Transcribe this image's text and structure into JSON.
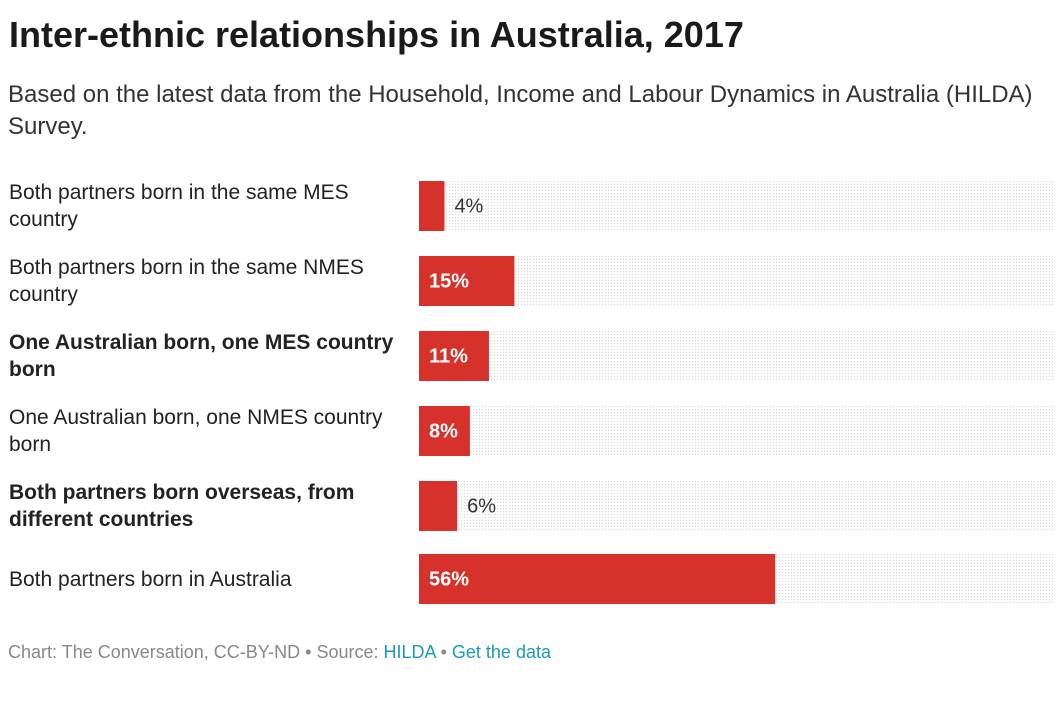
{
  "chart_data": {
    "type": "bar",
    "title": "Inter-ethnic relationships in Australia, 2017",
    "subtitle": "Based on the latest data from the Household, Income and Labour Dynamics in Australia (HILDA) Survey.",
    "categories": [
      "Both partners born in the same MES country",
      "Both partners born in the same NMES country",
      "One Australian born, one MES country born",
      "One Australian born, one NMES country born",
      "Both partners born overseas, from different countries",
      "Both partners born in Australia"
    ],
    "bold": [
      2,
      4
    ],
    "values": [
      4,
      15,
      11,
      8,
      6,
      56
    ],
    "value_labels": [
      "4%",
      "15%",
      "11%",
      "8%",
      "6%",
      "56%"
    ],
    "color": "#d6312b",
    "xlim": [
      0,
      100
    ],
    "footer": {
      "credit": "Chart: The Conversation, CC-BY-ND",
      "separator": "•",
      "source_label": "Source:",
      "source": "HILDA",
      "link": "Get the data"
    }
  }
}
